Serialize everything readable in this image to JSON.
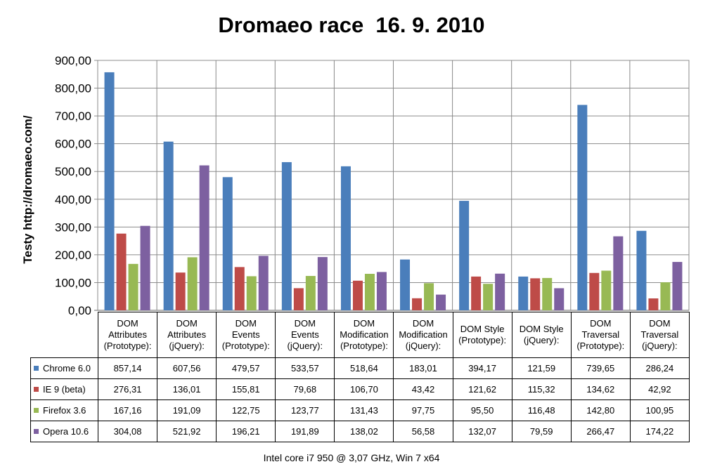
{
  "chart_data": {
    "type": "bar",
    "title": "Dromaeo race  16. 9. 2010",
    "ylabel": "Testy http://dromaeo.com/",
    "xlabel": "",
    "footer": "Intel core i7 950 @ 3,07 GHz, Win 7 x64",
    "ylim": [
      0,
      900
    ],
    "yticks": [
      "0,00",
      "100,00",
      "200,00",
      "300,00",
      "400,00",
      "500,00",
      "600,00",
      "700,00",
      "800,00",
      "900,00"
    ],
    "grid": true,
    "legend": "table-left",
    "categories": [
      [
        "DOM",
        "Attributes",
        "(Prototype):"
      ],
      [
        "DOM",
        "Attributes",
        "(jQuery):"
      ],
      [
        "DOM",
        "Events",
        "(Prototype):"
      ],
      [
        "DOM",
        "Events",
        "(jQuery):"
      ],
      [
        "DOM",
        "Modification",
        "(Prototype):"
      ],
      [
        "DOM",
        "Modification",
        "(jQuery):"
      ],
      [
        "DOM Style",
        "(Prototype):"
      ],
      [
        "DOM Style",
        "(jQuery):"
      ],
      [
        "DOM",
        "Traversal",
        "(Prototype):"
      ],
      [
        "DOM",
        "Traversal",
        "(jQuery):"
      ]
    ],
    "series": [
      {
        "name": "Chrome 6.0",
        "color": "#4a7ebb",
        "values": [
          857.14,
          607.56,
          479.57,
          533.57,
          518.64,
          183.01,
          394.17,
          121.59,
          739.65,
          286.24
        ],
        "labels": [
          "857,14",
          "607,56",
          "479,57",
          "533,57",
          "518,64",
          "183,01",
          "394,17",
          "121,59",
          "739,65",
          "286,24"
        ]
      },
      {
        "name": "IE 9 (beta)",
        "color": "#be4b48",
        "values": [
          276.31,
          136.01,
          155.81,
          79.68,
          106.7,
          43.42,
          121.62,
          115.32,
          134.62,
          42.92
        ],
        "labels": [
          "276,31",
          "136,01",
          "155,81",
          "79,68",
          "106,70",
          "43,42",
          "121,62",
          "115,32",
          "134,62",
          "42,92"
        ]
      },
      {
        "name": "Firefox 3.6",
        "color": "#98b954",
        "values": [
          167.16,
          191.09,
          122.75,
          123.77,
          131.43,
          97.75,
          95.5,
          116.48,
          142.8,
          100.95
        ],
        "labels": [
          "167,16",
          "191,09",
          "122,75",
          "123,77",
          "131,43",
          "97,75",
          "95,50",
          "116,48",
          "142,80",
          "100,95"
        ]
      },
      {
        "name": "Opera 10.6",
        "color": "#7d60a0",
        "values": [
          304.08,
          521.92,
          196.21,
          191.89,
          138.02,
          56.58,
          132.07,
          79.59,
          266.47,
          174.22
        ],
        "labels": [
          "304,08",
          "521,92",
          "196,21",
          "191,89",
          "138,02",
          "56,58",
          "132,07",
          "79,59",
          "266,47",
          "174,22"
        ]
      }
    ]
  }
}
